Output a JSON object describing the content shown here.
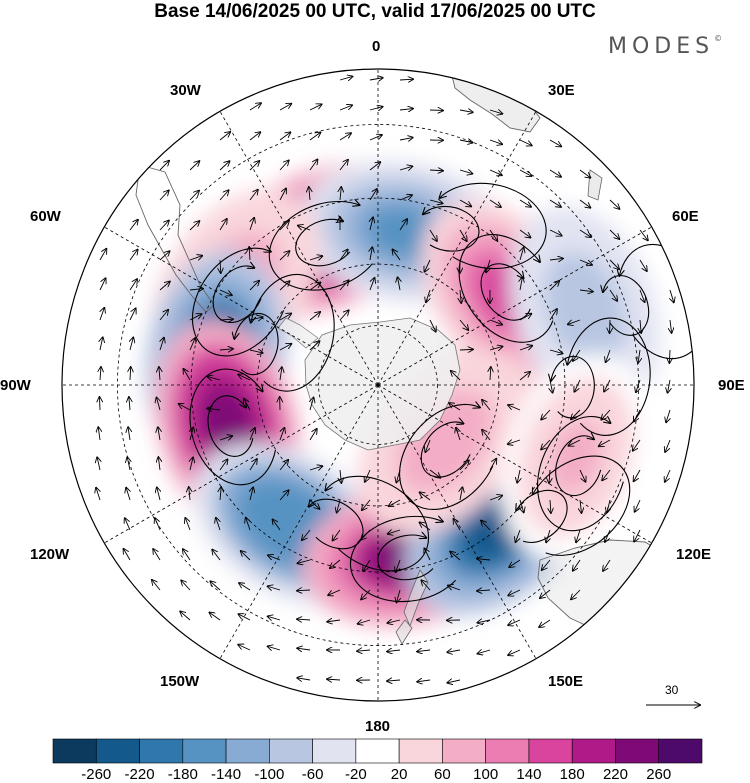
{
  "title": "Base 14/06/2025 00 UTC, valid 17/06/2025 00 UTC",
  "brand": "MODES",
  "brand_mark": "©",
  "projection": "south polar stereographic",
  "longitude_labels": {
    "top": "0",
    "top_right": "30E",
    "right_upper": "60E",
    "right": "90E",
    "right_lower": "120E",
    "bottom_right": "150E",
    "bottom": "180",
    "bottom_left": "150W",
    "left_lower": "120W",
    "left": "90W",
    "left_upper": "60W",
    "top_left": "30W"
  },
  "vector_reference": "30",
  "colorbar": {
    "labels": [
      "-260",
      "-220",
      "-180",
      "-140",
      "-100",
      "-60",
      "-20",
      "20",
      "60",
      "100",
      "140",
      "180",
      "220",
      "260"
    ],
    "colors": [
      "#0b3a5e",
      "#14598c",
      "#2f78ad",
      "#5693c2",
      "#88abd4",
      "#b8c6e2",
      "#e1e3f1",
      "#ffffff",
      "#f9d6dc",
      "#f3adc6",
      "#eb7db2",
      "#d8449e",
      "#b01a88",
      "#7d0a77",
      "#4e0a6b"
    ]
  },
  "anomaly_centers": [
    {
      "lon": -20,
      "lat": -52,
      "value": 260,
      "kind": "positive"
    },
    {
      "lon": 10,
      "lat": -52,
      "value": -160,
      "kind": "negative"
    },
    {
      "lon": -55,
      "lat": -48,
      "value": 80,
      "kind": "positive"
    },
    {
      "lon": -80,
      "lat": -50,
      "value": -240,
      "kind": "negative"
    },
    {
      "lon": -105,
      "lat": -52,
      "value": 250,
      "kind": "positive"
    },
    {
      "lon": -148,
      "lat": -50,
      "value": -180,
      "kind": "negative"
    },
    {
      "lon": 170,
      "lat": -48,
      "value": 230,
      "kind": "positive"
    },
    {
      "lon": 140,
      "lat": -45,
      "value": -240,
      "kind": "negative"
    },
    {
      "lon": 95,
      "lat": -52,
      "value": -220,
      "kind": "negative"
    },
    {
      "lon": 55,
      "lat": -52,
      "value": 160,
      "kind": "positive"
    },
    {
      "lon": 70,
      "lat": -38,
      "value": -80,
      "kind": "negative"
    },
    {
      "lon": 130,
      "lat": -68,
      "value": 80,
      "kind": "positive"
    },
    {
      "lon": 110,
      "lat": -40,
      "value": 60,
      "kind": "positive"
    }
  ]
}
